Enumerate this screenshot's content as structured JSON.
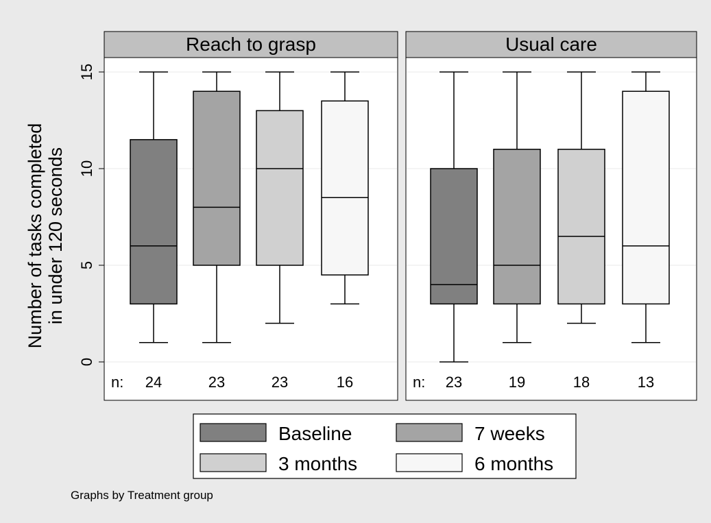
{
  "chart_data": {
    "type": "box",
    "ylabel_lines": [
      "Number of tasks completed",
      "in under 120 seconds"
    ],
    "ylim": [
      0,
      15
    ],
    "yticks": [
      0,
      5,
      10,
      15
    ],
    "grid": true,
    "legend_position": "bottom",
    "n_prefix": "n:",
    "note": "Graphs by Treatment group",
    "series": [
      {
        "name": "Baseline",
        "color": "#808080"
      },
      {
        "name": "7 weeks",
        "color": "#a4a4a4"
      },
      {
        "name": "3 months",
        "color": "#d0d0d0"
      },
      {
        "name": "6 months",
        "color": "#f7f7f7"
      }
    ],
    "panels": [
      {
        "title": "Reach to grasp",
        "boxes": [
          {
            "series": "Baseline",
            "min": 1,
            "q1": 3,
            "median": 6,
            "q3": 11.5,
            "max": 15,
            "n": 24
          },
          {
            "series": "7 weeks",
            "min": 1,
            "q1": 5,
            "median": 8,
            "q3": 14,
            "max": 15,
            "n": 23
          },
          {
            "series": "3 months",
            "min": 2,
            "q1": 5,
            "median": 10,
            "q3": 13,
            "max": 15,
            "n": 23
          },
          {
            "series": "6 months",
            "min": 3,
            "q1": 4.5,
            "median": 8.5,
            "q3": 13.5,
            "max": 15,
            "n": 16
          }
        ]
      },
      {
        "title": "Usual care",
        "boxes": [
          {
            "series": "Baseline",
            "min": 0,
            "q1": 3,
            "median": 4,
            "q3": 10,
            "max": 15,
            "n": 23
          },
          {
            "series": "7 weeks",
            "min": 1,
            "q1": 3,
            "median": 5,
            "q3": 11,
            "max": 15,
            "n": 19
          },
          {
            "series": "3 months",
            "min": 2,
            "q1": 3,
            "median": 6.5,
            "q3": 11,
            "max": 15,
            "n": 18
          },
          {
            "series": "6 months",
            "min": 1,
            "q1": 3,
            "median": 6,
            "q3": 14,
            "max": 15,
            "n": 13
          }
        ]
      }
    ]
  }
}
